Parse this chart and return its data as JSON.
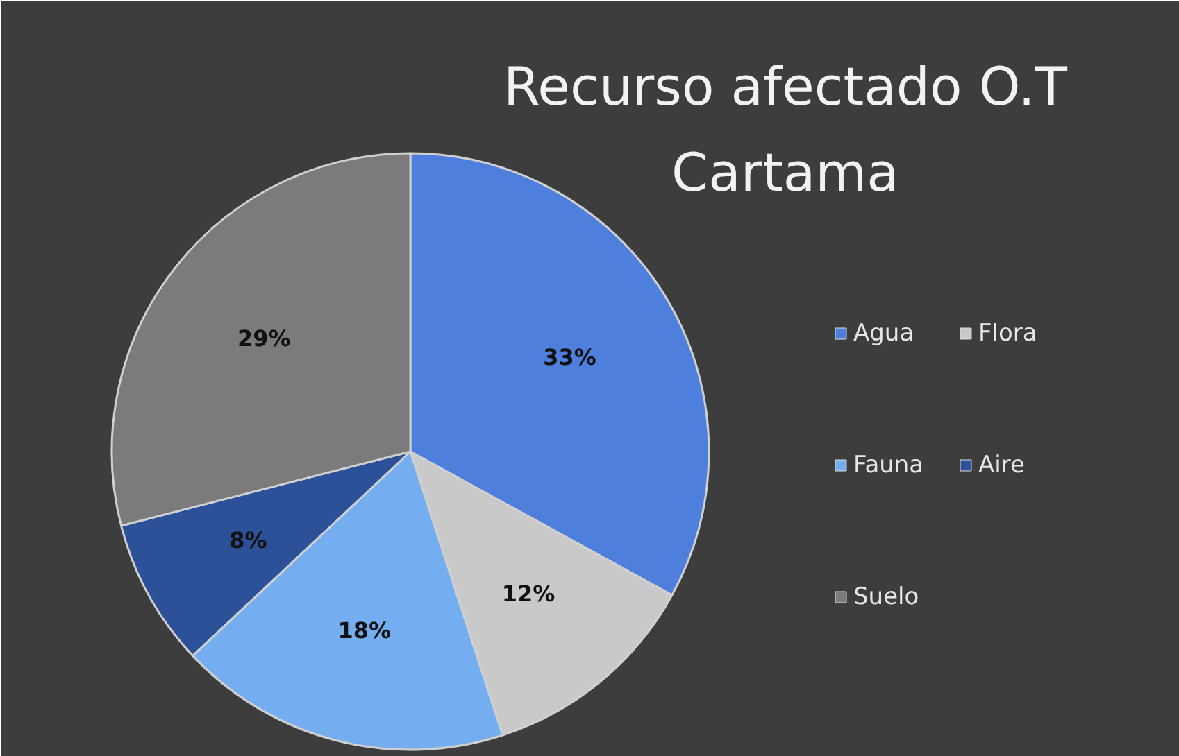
{
  "chart_data": {
    "type": "pie",
    "title": "Recurso afectado O.T Cartama",
    "categories": [
      "Agua",
      "Flora",
      "Fauna",
      "Aire",
      "Suelo"
    ],
    "values": [
      33,
      12,
      18,
      8,
      29
    ],
    "colors": [
      "#4f7fdc",
      "#c9c9c9",
      "#74aef0",
      "#2c5199",
      "#7b7b7b"
    ],
    "value_labels": [
      "33%",
      "12%",
      "18%",
      "8%",
      "29%"
    ],
    "legend": "right"
  }
}
